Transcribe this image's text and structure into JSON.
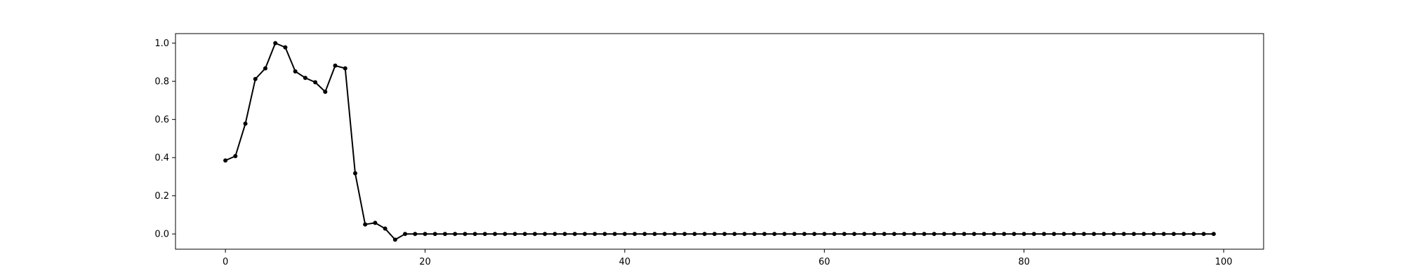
{
  "chart_data": {
    "type": "line",
    "title": "",
    "xlabel": "",
    "ylabel": "",
    "xlim": [
      -5,
      104
    ],
    "ylim": [
      -0.08,
      1.05
    ],
    "grid": false,
    "legend": "none",
    "x_ticks": [
      0,
      20,
      40,
      60,
      80,
      100
    ],
    "x_tick_labels": [
      "0",
      "20",
      "40",
      "60",
      "80",
      "100"
    ],
    "y_ticks": [
      0.0,
      0.2,
      0.4,
      0.6,
      0.8,
      1.0
    ],
    "y_tick_labels": [
      "0.0",
      "0.2",
      "0.4",
      "0.6",
      "0.8",
      "1.0"
    ],
    "series": [
      {
        "color": "#000000",
        "marker": "circle",
        "x_start": 0,
        "x_step": 1,
        "values": [
          0.385,
          0.408,
          0.578,
          0.812,
          0.868,
          1.0,
          0.978,
          0.852,
          0.818,
          0.795,
          0.745,
          0.882,
          0.868,
          0.318,
          0.05,
          0.058,
          0.028,
          -0.03,
          0.0,
          0.0,
          0.0,
          0.0,
          0.0,
          0.0,
          0.0,
          0.0,
          0.0,
          0.0,
          0.0,
          0.0,
          0.0,
          0.0,
          0.0,
          0.0,
          0.0,
          0.0,
          0.0,
          0.0,
          0.0,
          0.0,
          0.0,
          0.0,
          0.0,
          0.0,
          0.0,
          0.0,
          0.0,
          0.0,
          0.0,
          0.0,
          0.0,
          0.0,
          0.0,
          0.0,
          0.0,
          0.0,
          0.0,
          0.0,
          0.0,
          0.0,
          0.0,
          0.0,
          0.0,
          0.0,
          0.0,
          0.0,
          0.0,
          0.0,
          0.0,
          0.0,
          0.0,
          0.0,
          0.0,
          0.0,
          0.0,
          0.0,
          0.0,
          0.0,
          0.0,
          0.0,
          0.0,
          0.0,
          0.0,
          0.0,
          0.0,
          0.0,
          0.0,
          0.0,
          0.0,
          0.0,
          0.0,
          0.0,
          0.0,
          0.0,
          0.0,
          0.0,
          0.0,
          0.0,
          0.0,
          0.0
        ]
      }
    ]
  }
}
